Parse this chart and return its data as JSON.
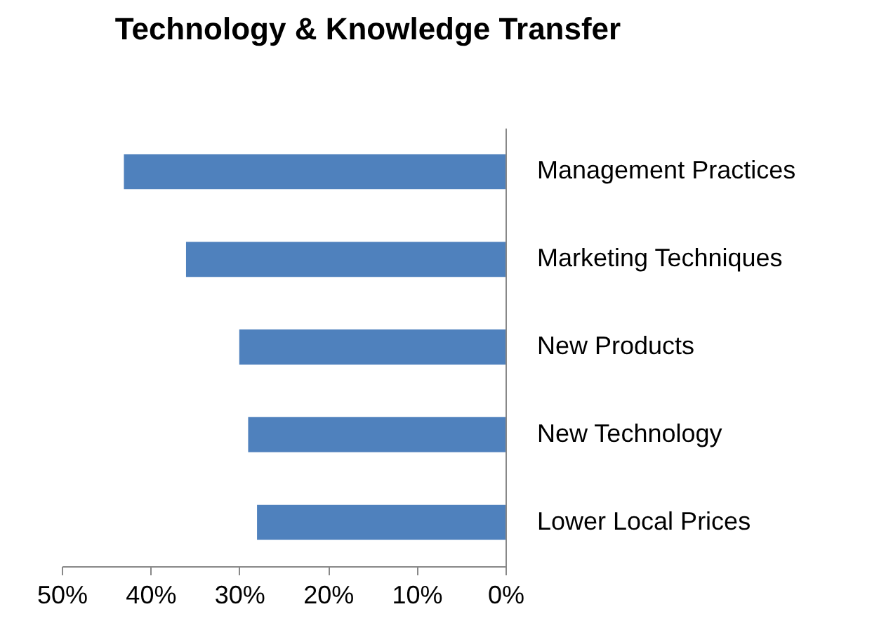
{
  "chart_data": {
    "type": "bar",
    "orientation": "horizontal",
    "title": "Technology & Knowledge Transfer",
    "categories": [
      "Management Practices",
      "Marketing Techniques",
      "New Products",
      "New Technology",
      "Lower Local Prices"
    ],
    "values": [
      43,
      36,
      30,
      29,
      28
    ],
    "color": "#4f81bd",
    "xlim": [
      50,
      0
    ],
    "xticks": [
      {
        "value": 50,
        "label": "50%"
      },
      {
        "value": 40,
        "label": "40%"
      },
      {
        "value": 30,
        "label": "30%"
      },
      {
        "value": 20,
        "label": "20%"
      },
      {
        "value": 10,
        "label": "10%"
      },
      {
        "value": 0,
        "label": "0%"
      }
    ],
    "grid": false
  }
}
